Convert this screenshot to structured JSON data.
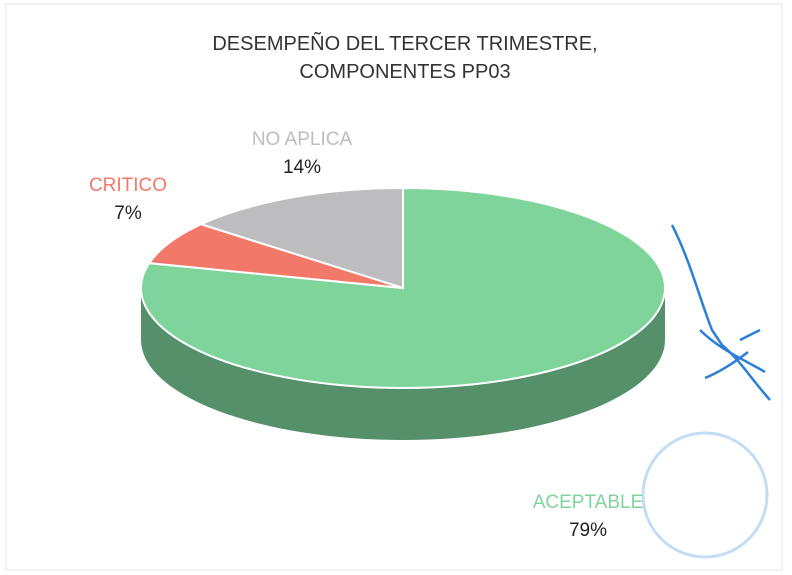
{
  "chart_data": {
    "type": "pie3d",
    "title": "DESEMPEÑO DEL TERCER TRIMESTRE, COMPONENTES PP03",
    "categories": [
      "ACEPTABLE",
      "CRITICO",
      "NO APLICA"
    ],
    "values": [
      79,
      7,
      14
    ],
    "value_labels": [
      "79%",
      "7%",
      "14%"
    ],
    "colors": [
      "#7fd49c",
      "#f2786a",
      "#bdbdbf"
    ]
  }
}
